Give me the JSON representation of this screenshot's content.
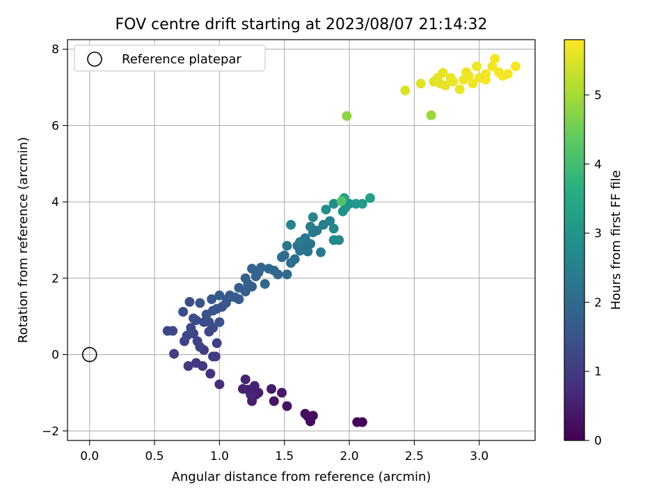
{
  "chart_data": {
    "type": "scatter",
    "title": "FOV centre drift starting at 2023/08/07 21:14:32",
    "xlabel": "Angular distance from reference (arcmin)",
    "ylabel": "Rotation from reference (arcmin)",
    "xlim": [
      -0.17,
      3.43
    ],
    "ylim": [
      -2.25,
      8.25
    ],
    "xticks": [
      "0.0",
      "0.5",
      "1.0",
      "1.5",
      "2.0",
      "2.5",
      "3.0"
    ],
    "yticks": [
      "−2",
      "0",
      "2",
      "4",
      "6",
      "8"
    ],
    "xtick_values": [
      0,
      0.5,
      1.0,
      1.5,
      2.0,
      2.5,
      3.0
    ],
    "ytick_values": [
      -2,
      0,
      2,
      4,
      6,
      8
    ],
    "grid": true,
    "legend": {
      "position": "top-left",
      "label": "Reference platepar"
    },
    "reference_point": {
      "x": 0.0,
      "y": 0.0
    },
    "colorbar": {
      "label": "Hours from first FF file",
      "range": [
        0,
        5.8
      ],
      "ticks": [
        "0",
        "1",
        "2",
        "3",
        "4",
        "5"
      ],
      "tick_values": [
        0,
        1,
        2,
        3,
        4,
        5
      ],
      "colormap": "viridis"
    },
    "points": [
      [
        2.06,
        -1.77,
        0.05
      ],
      [
        2.1,
        -1.77,
        0.08
      ],
      [
        1.7,
        -1.75,
        0.15
      ],
      [
        1.72,
        -1.6,
        0.18
      ],
      [
        1.66,
        -1.55,
        0.2
      ],
      [
        1.68,
        -1.62,
        0.22
      ],
      [
        1.52,
        -1.35,
        0.3
      ],
      [
        1.42,
        -1.22,
        0.35
      ],
      [
        1.48,
        -1.0,
        0.4
      ],
      [
        1.4,
        -0.9,
        0.42
      ],
      [
        1.28,
        -1.05,
        0.45
      ],
      [
        1.3,
        -1.0,
        0.48
      ],
      [
        1.25,
        -1.22,
        0.5
      ],
      [
        1.22,
        -0.92,
        0.52
      ],
      [
        1.27,
        -0.82,
        0.55
      ],
      [
        1.18,
        -0.9,
        0.57
      ],
      [
        1.2,
        -0.65,
        0.6
      ],
      [
        1.24,
        -1.05,
        0.62
      ],
      [
        1.0,
        -0.78,
        0.75
      ],
      [
        0.93,
        -0.5,
        0.85
      ],
      [
        0.87,
        -0.3,
        0.9
      ],
      [
        0.82,
        -0.22,
        0.95
      ],
      [
        0.76,
        -0.3,
        0.98
      ],
      [
        0.97,
        -0.05,
        1.0
      ],
      [
        0.95,
        -0.05,
        1.02
      ],
      [
        0.88,
        0.12,
        1.05
      ],
      [
        0.98,
        0.3,
        1.07
      ],
      [
        0.65,
        0.02,
        1.1
      ],
      [
        0.73,
        0.35,
        1.12
      ],
      [
        0.85,
        0.2,
        1.14
      ],
      [
        0.83,
        0.35,
        1.16
      ],
      [
        0.8,
        0.55,
        1.18
      ],
      [
        0.92,
        0.6,
        1.2
      ],
      [
        0.6,
        0.62,
        1.22
      ],
      [
        0.64,
        0.62,
        1.24
      ],
      [
        0.75,
        0.5,
        1.26
      ],
      [
        0.78,
        0.7,
        1.28
      ],
      [
        0.95,
        0.7,
        1.3
      ],
      [
        0.88,
        0.85,
        1.32
      ],
      [
        0.82,
        0.9,
        1.34
      ],
      [
        0.72,
        1.12,
        1.36
      ],
      [
        0.77,
        1.38,
        1.38
      ],
      [
        0.8,
        0.95,
        1.4
      ],
      [
        0.92,
        0.85,
        1.42
      ],
      [
        1.0,
        0.85,
        1.44
      ],
      [
        0.85,
        1.35,
        1.46
      ],
      [
        0.9,
        1.05,
        1.48
      ],
      [
        0.95,
        1.15,
        1.5
      ],
      [
        0.98,
        1.2,
        1.52
      ],
      [
        1.02,
        1.25,
        1.54
      ],
      [
        1.05,
        1.35,
        1.56
      ],
      [
        0.94,
        1.45,
        1.58
      ],
      [
        1.0,
        1.55,
        1.6
      ],
      [
        1.06,
        1.45,
        1.62
      ],
      [
        1.08,
        1.55,
        1.64
      ],
      [
        1.12,
        1.5,
        1.66
      ],
      [
        1.15,
        1.45,
        1.68
      ],
      [
        1.15,
        1.75,
        1.7
      ],
      [
        1.2,
        1.65,
        1.72
      ],
      [
        1.22,
        1.85,
        1.74
      ],
      [
        1.25,
        1.78,
        1.76
      ],
      [
        1.2,
        2.0,
        1.8
      ],
      [
        1.28,
        2.05,
        1.82
      ],
      [
        1.25,
        2.25,
        1.84
      ],
      [
        1.3,
        2.15,
        1.86
      ],
      [
        1.32,
        2.28,
        1.88
      ],
      [
        1.35,
        1.85,
        1.9
      ],
      [
        1.38,
        2.25,
        1.92
      ],
      [
        1.42,
        2.2,
        1.94
      ],
      [
        1.45,
        2.1,
        1.96
      ],
      [
        1.48,
        2.55,
        2.0
      ],
      [
        1.52,
        2.1,
        2.02
      ],
      [
        1.5,
        2.6,
        2.05
      ],
      [
        1.55,
        2.4,
        2.08
      ],
      [
        1.58,
        2.5,
        2.1
      ],
      [
        1.6,
        2.85,
        2.12
      ],
      [
        1.62,
        2.72,
        2.15
      ],
      [
        1.65,
        2.8,
        2.18
      ],
      [
        1.68,
        2.7,
        2.2
      ],
      [
        1.7,
        2.9,
        2.22
      ],
      [
        1.52,
        2.85,
        2.25
      ],
      [
        1.66,
        3.05,
        2.28
      ],
      [
        1.72,
        3.2,
        2.3
      ],
      [
        1.75,
        3.25,
        2.32
      ],
      [
        1.78,
        2.68,
        2.35
      ],
      [
        1.62,
        2.95,
        2.38
      ],
      [
        1.7,
        3.35,
        2.4
      ],
      [
        1.8,
        3.4,
        2.45
      ],
      [
        1.85,
        3.5,
        2.5
      ],
      [
        1.55,
        3.4,
        2.55
      ],
      [
        1.72,
        3.6,
        2.6
      ],
      [
        1.88,
        3.3,
        2.65
      ],
      [
        1.88,
        3.0,
        2.7
      ],
      [
        1.92,
        3.0,
        2.72
      ],
      [
        1.82,
        3.8,
        2.8
      ],
      [
        1.88,
        3.95,
        2.85
      ],
      [
        1.95,
        3.75,
        2.9
      ],
      [
        1.97,
        3.85,
        2.95
      ],
      [
        2.0,
        3.95,
        3.0
      ],
      [
        2.05,
        3.95,
        3.05
      ],
      [
        2.1,
        3.95,
        3.1
      ],
      [
        1.96,
        4.1,
        3.2
      ],
      [
        2.16,
        4.1,
        3.25
      ],
      [
        1.94,
        4.02,
        4.2
      ],
      [
        1.98,
        6.25,
        4.8
      ],
      [
        2.63,
        6.27,
        4.9
      ],
      [
        2.43,
        6.92,
        5.5
      ],
      [
        2.55,
        7.1,
        5.52
      ],
      [
        2.65,
        7.15,
        5.55
      ],
      [
        2.7,
        7.1,
        5.57
      ],
      [
        2.74,
        7.05,
        5.6
      ],
      [
        2.78,
        7.25,
        5.62
      ],
      [
        2.85,
        6.95,
        5.63
      ],
      [
        2.8,
        7.15,
        5.64
      ],
      [
        2.88,
        7.2,
        5.65
      ],
      [
        2.92,
        7.3,
        5.66
      ],
      [
        2.95,
        7.1,
        5.67
      ],
      [
        3.0,
        7.25,
        5.68
      ],
      [
        2.98,
        7.55,
        5.69
      ],
      [
        3.05,
        7.35,
        5.7
      ],
      [
        3.1,
        7.55,
        5.71
      ],
      [
        3.12,
        7.75,
        5.72
      ],
      [
        3.15,
        7.4,
        5.73
      ],
      [
        3.18,
        7.3,
        5.74
      ],
      [
        3.22,
        7.35,
        5.75
      ],
      [
        3.28,
        7.55,
        5.76
      ],
      [
        3.05,
        7.2,
        5.72
      ],
      [
        2.72,
        7.38,
        5.61
      ],
      [
        2.68,
        7.25,
        5.58
      ],
      [
        2.9,
        7.4,
        5.66
      ]
    ]
  }
}
